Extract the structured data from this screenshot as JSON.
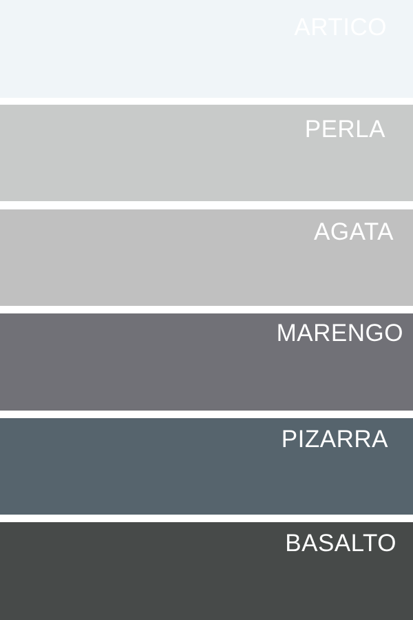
{
  "swatches": [
    {
      "name": "ARTICO",
      "color": "#f0f5f8"
    },
    {
      "name": "PERLA",
      "color": "#c8cac9"
    },
    {
      "name": "AGATA",
      "color": "#c0c0c0"
    },
    {
      "name": "MARENGO",
      "color": "#717177"
    },
    {
      "name": "PIZARRA",
      "color": "#56646d"
    },
    {
      "name": "BASALTO",
      "color": "#474a49"
    }
  ]
}
